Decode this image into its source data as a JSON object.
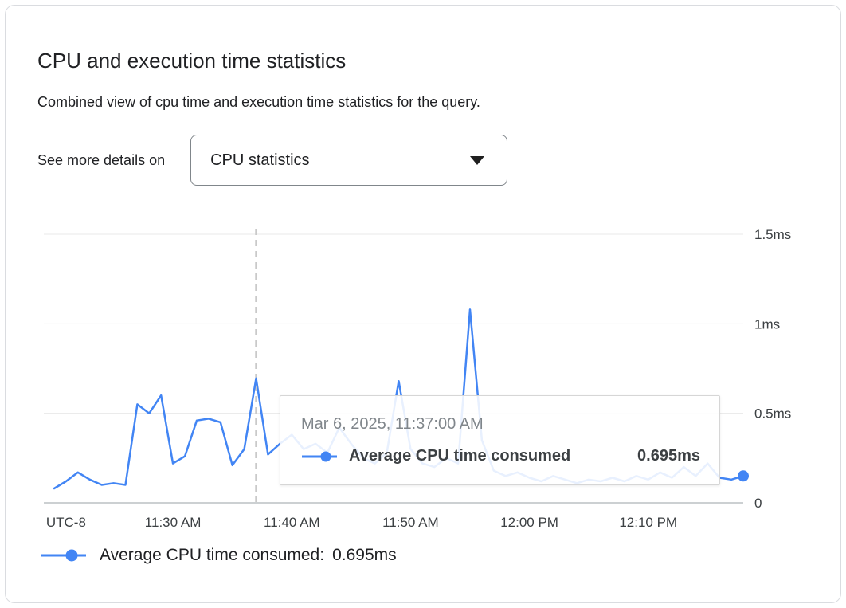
{
  "header": {
    "title": "CPU and execution time statistics",
    "subtitle": "Combined view of cpu time and execution time statistics for the query.",
    "details_label": "See more details on",
    "dropdown_value": "CPU statistics"
  },
  "tooltip": {
    "date": "Mar 6, 2025, 11:37:00 AM",
    "series_label": "Average CPU time consumed",
    "value": "0.695ms"
  },
  "legend": {
    "label": "Average CPU time consumed:",
    "value": "0.695ms"
  },
  "colors": {
    "series": "#4285f4",
    "grid": "#e8e8e8",
    "axis": "#9aa0a6",
    "dashed_guide": "#c9c9c9",
    "axis_text": "#3c4043",
    "tooltip_date_text": "#80868b",
    "card_border": "#dadce0"
  },
  "chart_data": {
    "type": "line",
    "title": "",
    "timezone_label": "UTC-8",
    "x_start_time": "11:20 AM",
    "x_step_minutes": 1,
    "ylim": [
      0,
      1.5
    ],
    "grid": "horizontal",
    "legend_position": "bottom",
    "y_ticks": [
      {
        "label": "0",
        "value": 0
      },
      {
        "label": "0.5ms",
        "value": 0.5
      },
      {
        "label": "1ms",
        "value": 1
      },
      {
        "label": "1.5ms",
        "value": 1.5
      }
    ],
    "x_ticks": [
      {
        "label": "UTC-8",
        "index": 1
      },
      {
        "label": "11:30 AM",
        "index": 10
      },
      {
        "label": "11:40 AM",
        "index": 20
      },
      {
        "label": "11:50 AM",
        "index": 30
      },
      {
        "label": "12:00 PM",
        "index": 40
      },
      {
        "label": "12:10 PM",
        "index": 50
      }
    ],
    "series": [
      {
        "name": "Average CPU time consumed",
        "color": "#4285f4",
        "unit": "ms",
        "values": [
          0.08,
          0.12,
          0.17,
          0.13,
          0.1,
          0.11,
          0.1,
          0.55,
          0.5,
          0.6,
          0.22,
          0.26,
          0.46,
          0.47,
          0.45,
          0.21,
          0.3,
          0.695,
          0.27,
          0.33,
          0.38,
          0.3,
          0.33,
          0.28,
          0.42,
          0.33,
          0.25,
          0.22,
          0.28,
          0.68,
          0.3,
          0.22,
          0.2,
          0.25,
          0.22,
          1.08,
          0.35,
          0.18,
          0.15,
          0.17,
          0.14,
          0.12,
          0.15,
          0.13,
          0.11,
          0.13,
          0.12,
          0.14,
          0.12,
          0.15,
          0.13,
          0.17,
          0.14,
          0.2,
          0.15,
          0.22,
          0.14,
          0.13,
          0.15
        ]
      }
    ],
    "highlight": {
      "index": 17,
      "time": "Mar 6, 2025, 11:37:00 AM",
      "value_ms": 0.695
    }
  }
}
